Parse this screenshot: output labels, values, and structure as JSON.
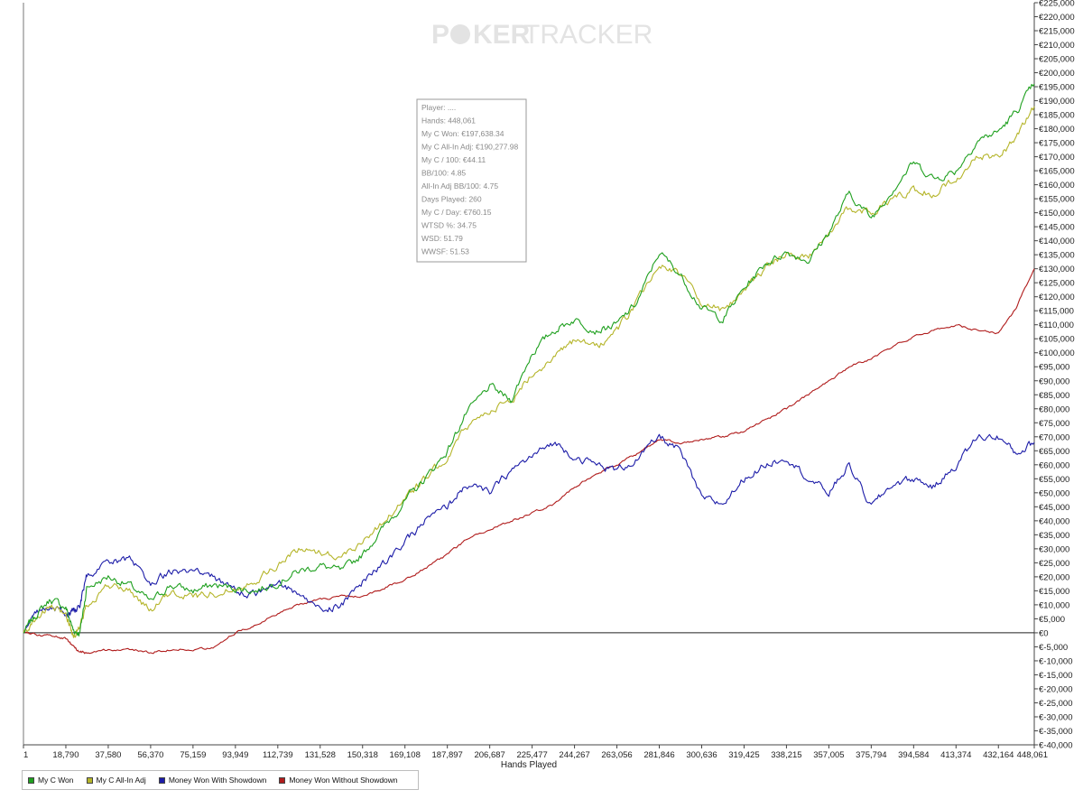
{
  "chart_data": {
    "type": "line",
    "watermark": {
      "part1": "P",
      "part2": "KER",
      "part3": "TRACKER"
    },
    "xlabel": "Hands Played",
    "x_ticks": [
      "1",
      "18,790",
      "37,580",
      "56,370",
      "75,159",
      "93,949",
      "112,739",
      "131,528",
      "150,318",
      "169,108",
      "187,897",
      "206,687",
      "225,477",
      "244,267",
      "263,056",
      "281,846",
      "300,636",
      "319,425",
      "338,215",
      "357,005",
      "375,794",
      "394,584",
      "413,374",
      "432,164",
      "448,061"
    ],
    "x_tick_values": [
      1,
      18790,
      37580,
      56370,
      75159,
      93949,
      112739,
      131528,
      150318,
      169108,
      187897,
      206687,
      225477,
      244267,
      263056,
      281846,
      300636,
      319425,
      338215,
      357005,
      375794,
      394584,
      413374,
      432164,
      448061
    ],
    "xlim": [
      1,
      448061
    ],
    "ylim": [
      -40000,
      225000
    ],
    "y_ticks": [
      "€225,000",
      "€220,000",
      "€215,000",
      "€210,000",
      "€205,000",
      "€200,000",
      "€195,000",
      "€190,000",
      "€185,000",
      "€180,000",
      "€175,000",
      "€170,000",
      "€165,000",
      "€160,000",
      "€155,000",
      "€150,000",
      "€145,000",
      "€140,000",
      "€135,000",
      "€130,000",
      "€125,000",
      "€120,000",
      "€115,000",
      "€110,000",
      "€105,000",
      "€100,000",
      "€95,000",
      "€90,000",
      "€85,000",
      "€80,000",
      "€75,000",
      "€70,000",
      "€65,000",
      "€60,000",
      "€55,000",
      "€50,000",
      "€45,000",
      "€40,000",
      "€35,000",
      "€30,000",
      "€25,000",
      "€20,000",
      "€15,000",
      "€10,000",
      "€5,000",
      "€0",
      "€-5,000",
      "€-10,000",
      "€-15,000",
      "€-20,000",
      "€-25,000",
      "€-30,000",
      "€-35,000",
      "€-40,000"
    ],
    "y_tick_values": [
      225000,
      220000,
      215000,
      210000,
      205000,
      200000,
      195000,
      190000,
      185000,
      180000,
      175000,
      170000,
      165000,
      160000,
      155000,
      150000,
      145000,
      140000,
      135000,
      130000,
      125000,
      120000,
      115000,
      110000,
      105000,
      100000,
      95000,
      90000,
      85000,
      80000,
      75000,
      70000,
      65000,
      60000,
      55000,
      50000,
      45000,
      40000,
      35000,
      30000,
      25000,
      20000,
      15000,
      10000,
      5000,
      0,
      -5000,
      -10000,
      -15000,
      -20000,
      -25000,
      -30000,
      -35000,
      -40000
    ],
    "series": [
      {
        "name": "My C Won",
        "color": "#1fa01f",
        "x": [
          1,
          5000,
          12000,
          18790,
          22000,
          25000,
          28000,
          37580,
          47000,
          56370,
          65000,
          75159,
          84000,
          93949,
          103000,
          112739,
          122000,
          131528,
          141000,
          150318,
          160000,
          169108,
          178000,
          187897,
          196000,
          206687,
          216000,
          225477,
          235000,
          244267,
          254000,
          263056,
          272000,
          281846,
          291000,
          300636,
          310000,
          319425,
          329000,
          338215,
          348000,
          357005,
          366000,
          375794,
          385000,
          394584,
          404000,
          413374,
          423000,
          432164,
          440000,
          448061
        ],
        "y": [
          0,
          6000,
          12000,
          9000,
          1000,
          0,
          16000,
          20000,
          17000,
          11000,
          17000,
          15000,
          17000,
          16000,
          15000,
          18000,
          22000,
          24000,
          22000,
          28000,
          38000,
          47000,
          55000,
          65000,
          78000,
          88000,
          83000,
          100000,
          108000,
          112000,
          108000,
          110000,
          118000,
          136000,
          128000,
          116000,
          112000,
          123000,
          132000,
          136000,
          133000,
          143000,
          157000,
          148000,
          158000,
          168000,
          162000,
          165000,
          176000,
          179000,
          186000,
          196000
        ]
      },
      {
        "name": "My C All-In Adj",
        "color": "#b5b52a",
        "x": [
          1,
          5000,
          12000,
          18790,
          22000,
          25000,
          28000,
          37580,
          47000,
          56370,
          65000,
          75159,
          84000,
          93949,
          103000,
          112739,
          122000,
          131528,
          141000,
          150318,
          160000,
          169108,
          178000,
          187897,
          196000,
          206687,
          216000,
          225477,
          235000,
          244267,
          254000,
          263056,
          272000,
          281846,
          291000,
          300636,
          310000,
          319425,
          329000,
          338215,
          348000,
          357005,
          366000,
          375794,
          385000,
          394584,
          404000,
          413374,
          423000,
          432164,
          440000,
          448061
        ],
        "y": [
          0,
          5000,
          9000,
          7000,
          -1000,
          2000,
          10000,
          17000,
          15000,
          8000,
          14000,
          13000,
          14000,
          16000,
          19000,
          24000,
          30000,
          29000,
          27000,
          33000,
          40000,
          48000,
          55000,
          63000,
          73000,
          80000,
          82000,
          93000,
          98000,
          104000,
          102000,
          108000,
          118000,
          132000,
          128000,
          118000,
          115000,
          123000,
          130000,
          136000,
          134000,
          143000,
          152000,
          150000,
          155000,
          158000,
          157000,
          162000,
          170000,
          170000,
          177000,
          188000
        ]
      },
      {
        "name": "Money Won With Showdown",
        "color": "#1c1ca8",
        "x": [
          1,
          5000,
          12000,
          18790,
          22000,
          25000,
          28000,
          37580,
          47000,
          56370,
          65000,
          75159,
          84000,
          93949,
          103000,
          112739,
          122000,
          131528,
          141000,
          150318,
          160000,
          169108,
          178000,
          187897,
          196000,
          206687,
          216000,
          225477,
          235000,
          244267,
          254000,
          263056,
          272000,
          281846,
          291000,
          300636,
          310000,
          319425,
          329000,
          338215,
          348000,
          357005,
          366000,
          375794,
          385000,
          394584,
          404000,
          413374,
          423000,
          432164,
          440000,
          448061
        ],
        "y": [
          0,
          6000,
          10000,
          7000,
          8000,
          10000,
          20000,
          25000,
          26000,
          18000,
          22000,
          22000,
          20000,
          15000,
          14000,
          18000,
          14000,
          8000,
          10000,
          18000,
          25000,
          32000,
          40000,
          45000,
          53000,
          50000,
          58000,
          63000,
          68000,
          63000,
          60000,
          58000,
          62000,
          70000,
          65000,
          48000,
          46000,
          55000,
          60000,
          63000,
          55000,
          50000,
          60000,
          45000,
          53000,
          55000,
          52000,
          60000,
          70000,
          70000,
          64000,
          68000
        ]
      },
      {
        "name": "Money Won Without Showdown",
        "color": "#b01c1c",
        "x": [
          1,
          5000,
          12000,
          18790,
          22000,
          25000,
          28000,
          37580,
          47000,
          56370,
          65000,
          75159,
          84000,
          93949,
          103000,
          112739,
          122000,
          131528,
          141000,
          150318,
          160000,
          169108,
          178000,
          187897,
          196000,
          206687,
          216000,
          225477,
          235000,
          244267,
          254000,
          263056,
          272000,
          281846,
          291000,
          300636,
          310000,
          319425,
          329000,
          338215,
          348000,
          357005,
          366000,
          375794,
          385000,
          394584,
          404000,
          413374,
          423000,
          432164,
          440000,
          448061
        ],
        "y": [
          0,
          -500,
          -1000,
          -2000,
          -5000,
          -7000,
          -7000,
          -6000,
          -6000,
          -7000,
          -6000,
          -6000,
          -5000,
          0,
          3000,
          7000,
          10000,
          12000,
          13000,
          13000,
          16000,
          19000,
          23000,
          28000,
          33000,
          37000,
          40000,
          43000,
          46000,
          52000,
          57000,
          60000,
          64000,
          69000,
          68000,
          69000,
          70000,
          72000,
          76000,
          80000,
          85000,
          90000,
          95000,
          98000,
          102000,
          106000,
          108000,
          110000,
          108000,
          107000,
          116000,
          130000
        ]
      }
    ],
    "tooltip": {
      "lines": [
        "Player: ....",
        "Hands: 448,061",
        "My C Won: €197,638.34",
        "My C All-In Adj: €190,277.98",
        "My C / 100: €44.11",
        "BB/100: 4.85",
        "All-In Adj BB/100: 4.75",
        "Days Played: 260",
        "My C / Day: €760.15",
        "WTSD %: 34.75",
        "WSD: 51.79",
        "WWSF: 51.53"
      ]
    },
    "legend_placement": "bottom-left",
    "grid": false
  }
}
